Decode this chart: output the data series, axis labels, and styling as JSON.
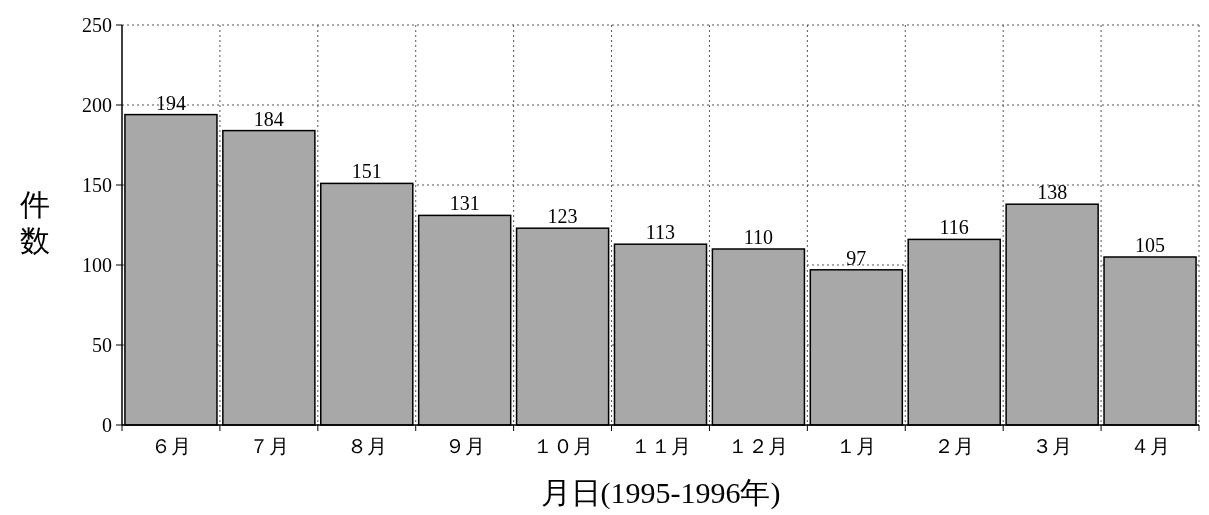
{
  "chart_data": {
    "type": "bar",
    "xlabel": "月日(1995-1996年)",
    "ylabel": "件数",
    "categories": [
      "６月",
      "７月",
      "８月",
      "９月",
      "１０月",
      "１１月",
      "１２月",
      "１月",
      "２月",
      "３月",
      "４月"
    ],
    "values": [
      194,
      184,
      151,
      131,
      123,
      113,
      110,
      97,
      116,
      138,
      105
    ],
    "color": "#a8a8a8",
    "ylim": [
      0,
      250
    ],
    "yticks": [
      0,
      50,
      100,
      150,
      200,
      250
    ],
    "grid": true,
    "data_labels": true
  }
}
